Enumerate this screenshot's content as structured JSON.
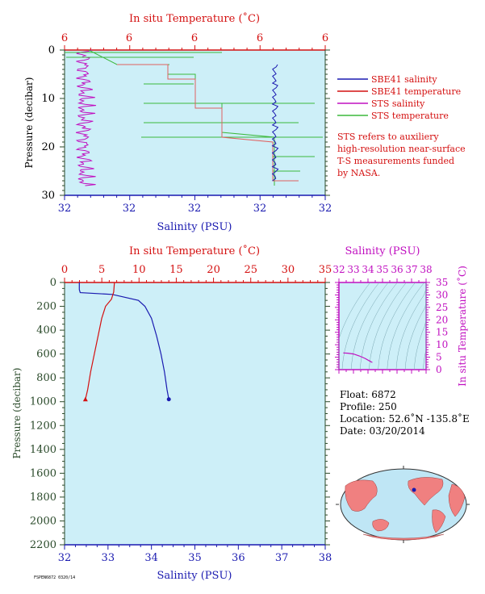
{
  "chart_data": [
    {
      "type": "line",
      "xlabel": "Salinity (PSU)",
      "x2label": "In situ Temperature (˚C)",
      "ylabel": "Pressure (decibar)",
      "x_ticks": [
        "32",
        "32",
        "32",
        "32",
        "32"
      ],
      "x2_ticks": [
        "6",
        "6",
        "6",
        "6",
        "6"
      ],
      "y_ticks": [
        0,
        10,
        20,
        30
      ],
      "ylim": [
        30,
        0
      ],
      "legend": "right",
      "grid": false,
      "series": [
        {
          "name": "SBE41 salinity",
          "color": "#1a1ab0"
        },
        {
          "name": "SBE41 temperature",
          "color": "#d41010"
        },
        {
          "name": "STS salinity",
          "color": "#c010c0"
        },
        {
          "name": "STS temperature",
          "color": "#3cb83c"
        }
      ],
      "note": [
        "STS refers to auxiliery",
        "high-resolution near-surface",
        "T-S measurements funded",
        "by NASA."
      ]
    },
    {
      "type": "line",
      "xlabel": "Salinity (PSU)",
      "x2label": "In situ Temperature (˚C)",
      "ylabel": "Pressure (decibar)",
      "xlim": [
        32,
        38
      ],
      "x2lim": [
        0,
        35
      ],
      "ylim": [
        2200,
        0
      ],
      "x_ticks": [
        32,
        33,
        34,
        35,
        36,
        37,
        38
      ],
      "x2_ticks": [
        0,
        5,
        10,
        15,
        20,
        25,
        30,
        35
      ],
      "y_ticks": [
        0,
        200,
        400,
        600,
        800,
        1000,
        1200,
        1400,
        1600,
        1800,
        2000,
        2200
      ],
      "series": [
        {
          "color": "#1a1ab0",
          "axis": "salinity",
          "points": [
            [
              32.34,
              0
            ],
            [
              32.34,
              60
            ],
            [
              32.36,
              85
            ],
            [
              33.1,
              100
            ],
            [
              33.7,
              150
            ],
            [
              33.85,
              200
            ],
            [
              34.0,
              300
            ],
            [
              34.12,
              450
            ],
            [
              34.22,
              600
            ],
            [
              34.3,
              750
            ],
            [
              34.36,
              900
            ],
            [
              34.4,
              980
            ]
          ]
        },
        {
          "color": "#d41010",
          "axis": "temperature",
          "points": [
            [
              6.7,
              0
            ],
            [
              6.6,
              80
            ],
            [
              6.3,
              140
            ],
            [
              5.5,
              200
            ],
            [
              5.0,
              300
            ],
            [
              4.5,
              450
            ],
            [
              4.0,
              600
            ],
            [
              3.5,
              750
            ],
            [
              3.1,
              900
            ],
            [
              2.8,
              980
            ]
          ]
        }
      ]
    },
    {
      "type": "line",
      "xlabel": "Salinity (PSU)",
      "ylabel": "In situ Temperature (˚C)",
      "xlim": [
        32,
        38
      ],
      "ylim": [
        0,
        35
      ],
      "x_ticks": [
        32,
        33,
        34,
        35,
        36,
        37,
        38
      ],
      "y_ticks": [
        0,
        5,
        10,
        15,
        20,
        25,
        30,
        35
      ],
      "series": [
        {
          "color": "#c010c0",
          "points": [
            [
              32.3,
              6.7
            ],
            [
              32.6,
              6.6
            ],
            [
              33.0,
              6.3
            ],
            [
              33.4,
              5.5
            ],
            [
              33.8,
              4.5
            ],
            [
              34.1,
              3.5
            ],
            [
              34.3,
              2.9
            ]
          ]
        }
      ]
    }
  ],
  "info": {
    "float": "Float: 6872",
    "profile": "Profile: 250",
    "location": "Location: 52.6˚N -135.8˚E",
    "date": "Date: 03/20/2014"
  },
  "footer": "FSPEN6872 0320/14",
  "colors": {
    "plot_bg": "#cdeff8",
    "axis_red": "#d41010",
    "axis_blue": "#1a1ab0",
    "axis_green": "#2a4a2a",
    "axis_magenta": "#c010c0",
    "land": "#f08080",
    "ocean": "#bfe6f5"
  }
}
